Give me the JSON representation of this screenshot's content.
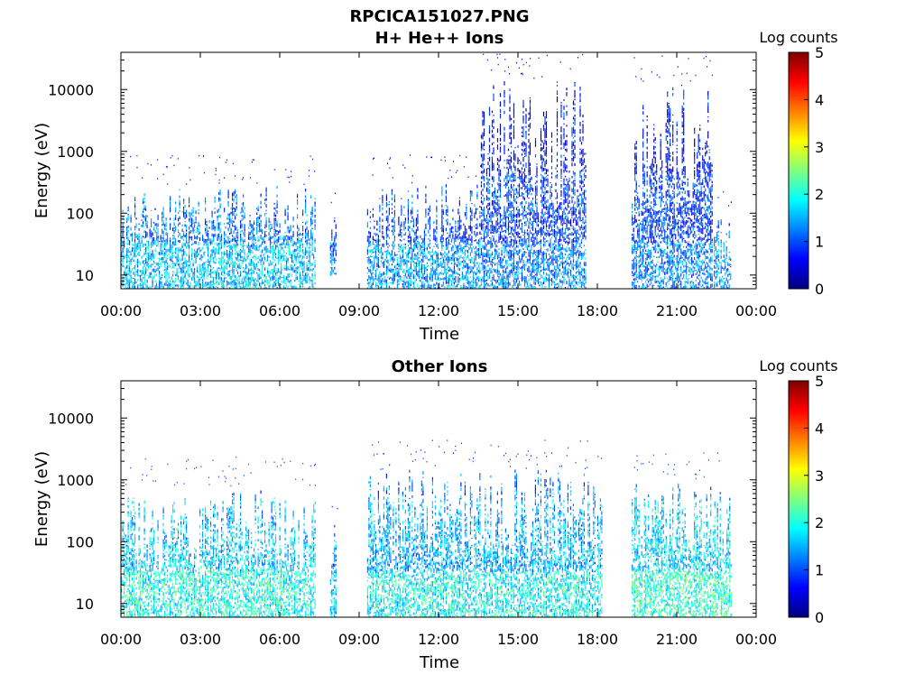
{
  "figure": {
    "filename": "RPCICA151027.PNG"
  },
  "colorbar": {
    "title": "Log counts",
    "ticks": [
      "0",
      "1",
      "2",
      "3",
      "4",
      "5"
    ],
    "stops": [
      "#00007f",
      "#0000ff",
      "#007fff",
      "#00ffff",
      "#7fff7f",
      "#ffff00",
      "#ff7f00",
      "#ff0000",
      "#7f0000"
    ]
  },
  "chart_data": [
    {
      "type": "heatmap",
      "title": "H+ He++ Ions",
      "xlabel": "Time",
      "ylabel": "Energy (eV)",
      "y_scale": "log",
      "ylim": [
        6,
        40000
      ],
      "xlim": [
        "00:00",
        "24:00"
      ],
      "x_ticks": [
        "00:00",
        "03:00",
        "06:00",
        "09:00",
        "12:00",
        "15:00",
        "18:00",
        "21:00",
        "00:00"
      ],
      "y_ticks": [
        "10",
        "100",
        "1000",
        "10000"
      ],
      "y_tick_values": [
        10,
        100,
        1000,
        10000
      ],
      "clim": [
        0,
        5
      ],
      "regions": [
        {
          "t_start": 0.0,
          "t_end": 7.4,
          "e_min": 6,
          "e_max": 300,
          "level": 1.2
        },
        {
          "t_start": 7.9,
          "t_end": 8.2,
          "e_min": 10,
          "e_max": 150,
          "level": 0.8
        },
        {
          "t_start": 9.3,
          "t_end": 13.6,
          "e_min": 6,
          "e_max": 300,
          "level": 1.0
        },
        {
          "t_start": 13.6,
          "t_end": 17.6,
          "e_min": 6,
          "e_max": 15000,
          "level": 0.9
        },
        {
          "t_start": 19.3,
          "t_end": 22.4,
          "e_min": 6,
          "e_max": 12000,
          "level": 0.9
        },
        {
          "t_start": 22.4,
          "t_end": 23.1,
          "e_min": 6,
          "e_max": 100,
          "level": 1.0
        }
      ]
    },
    {
      "type": "heatmap",
      "title": "Other Ions",
      "xlabel": "Time",
      "ylabel": "Energy (eV)",
      "y_scale": "log",
      "ylim": [
        6,
        40000
      ],
      "xlim": [
        "00:00",
        "24:00"
      ],
      "x_ticks": [
        "00:00",
        "03:00",
        "06:00",
        "09:00",
        "12:00",
        "15:00",
        "18:00",
        "21:00",
        "00:00"
      ],
      "y_ticks": [
        "10",
        "100",
        "1000",
        "10000"
      ],
      "y_tick_values": [
        10,
        100,
        1000,
        10000
      ],
      "clim": [
        0,
        5
      ],
      "regions": [
        {
          "t_start": 0.0,
          "t_end": 7.4,
          "e_min": 6,
          "e_max": 800,
          "level": 1.6
        },
        {
          "t_start": 7.9,
          "t_end": 8.2,
          "e_min": 6,
          "e_max": 300,
          "level": 1.2
        },
        {
          "t_start": 9.3,
          "t_end": 18.2,
          "e_min": 6,
          "e_max": 1500,
          "level": 1.5
        },
        {
          "t_start": 19.3,
          "t_end": 23.1,
          "e_min": 6,
          "e_max": 1000,
          "level": 1.7
        }
      ]
    }
  ]
}
